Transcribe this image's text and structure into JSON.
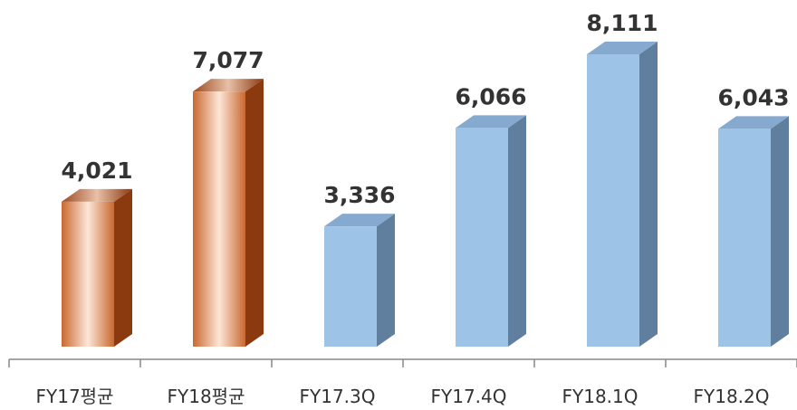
{
  "chart_data": {
    "type": "bar",
    "categories": [
      "FY17평균",
      "FY18평균",
      "FY17.3Q",
      "FY17.4Q",
      "FY18.1Q",
      "FY18.2Q"
    ],
    "values": [
      4021,
      7077,
      3336,
      6066,
      8111,
      6043
    ],
    "value_labels": [
      "4,021",
      "7,077",
      "3,336",
      "6,066",
      "8,111",
      "6,043"
    ],
    "colors": [
      "#e8956a",
      "#e8956a",
      "#9dc3e6",
      "#9dc3e6",
      "#9dc3e6",
      "#9dc3e6"
    ]
  }
}
